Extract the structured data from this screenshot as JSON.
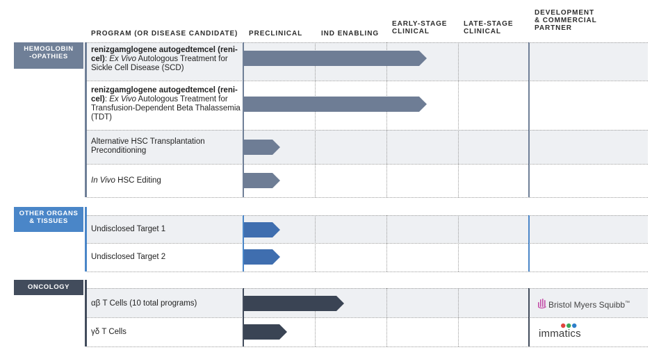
{
  "headers": {
    "program": "PROGRAM (OR DISEASE CANDIDATE)",
    "preclinical": "PRECLINICAL",
    "ind_enabling": "IND ENABLING",
    "early_stage_1": "EARLY-STAGE",
    "early_stage_2": "CLINICAL",
    "late_stage_1": "LATE-STAGE",
    "late_stage_2": "CLINICAL",
    "partner_1": "DEVELOPMENT",
    "partner_2": "& COMMERCIAL",
    "partner_3": "PARTNER"
  },
  "colors": {
    "hemoglobin": "#6f7f97",
    "other_organs": "#4a86c8",
    "oncology": "#424c5c",
    "stripe": "#eef0f3",
    "arrow_hemo": "#6e7d95",
    "arrow_other": "#3f6eaf",
    "arrow_onc": "#3a4454"
  },
  "sections": {
    "hemo_1": "HEMOGLOBIN",
    "hemo_2": "-OPATHIES",
    "other_1": "OTHER ORGANS",
    "other_2": "& TISSUES",
    "onc": "ONCOLOGY"
  },
  "programs": {
    "p1": {
      "bold": "renizgamglogene autogedtemcel (reni-cel)",
      "rest_1": ": ",
      "italic": "Ex Vivo",
      "rest_2": " Autologous Treatment for Sickle Cell Disease (SCD)",
      "stage": 2.55
    },
    "p2": {
      "bold": "renizgamglogene autogedtemcel (reni-cel)",
      "rest_1": ": ",
      "italic": "Ex Vivo",
      "rest_2": " Autologous Treatment for Transfusion-Dependent Beta Thalassemia (TDT)",
      "stage": 2.55
    },
    "p3": {
      "text": "Alternative HSC Transplantation Preconditioning",
      "stage": 0.5
    },
    "p4": {
      "italic": "In Vivo",
      "rest": " HSC Editing",
      "stage": 0.5
    },
    "p5": {
      "text": "Undisclosed Target 1",
      "stage": 0.5
    },
    "p6": {
      "text": "Undisclosed Target 2",
      "stage": 0.5
    },
    "p7": {
      "text": "αβ T Cells (10 total programs)",
      "stage": 1.4
    },
    "p8": {
      "text": "γδ T Cells",
      "stage": 0.6
    }
  },
  "partners": {
    "bms": "Bristol Myers Squibb",
    "bms_tm": "™",
    "immatics": "immatics"
  }
}
